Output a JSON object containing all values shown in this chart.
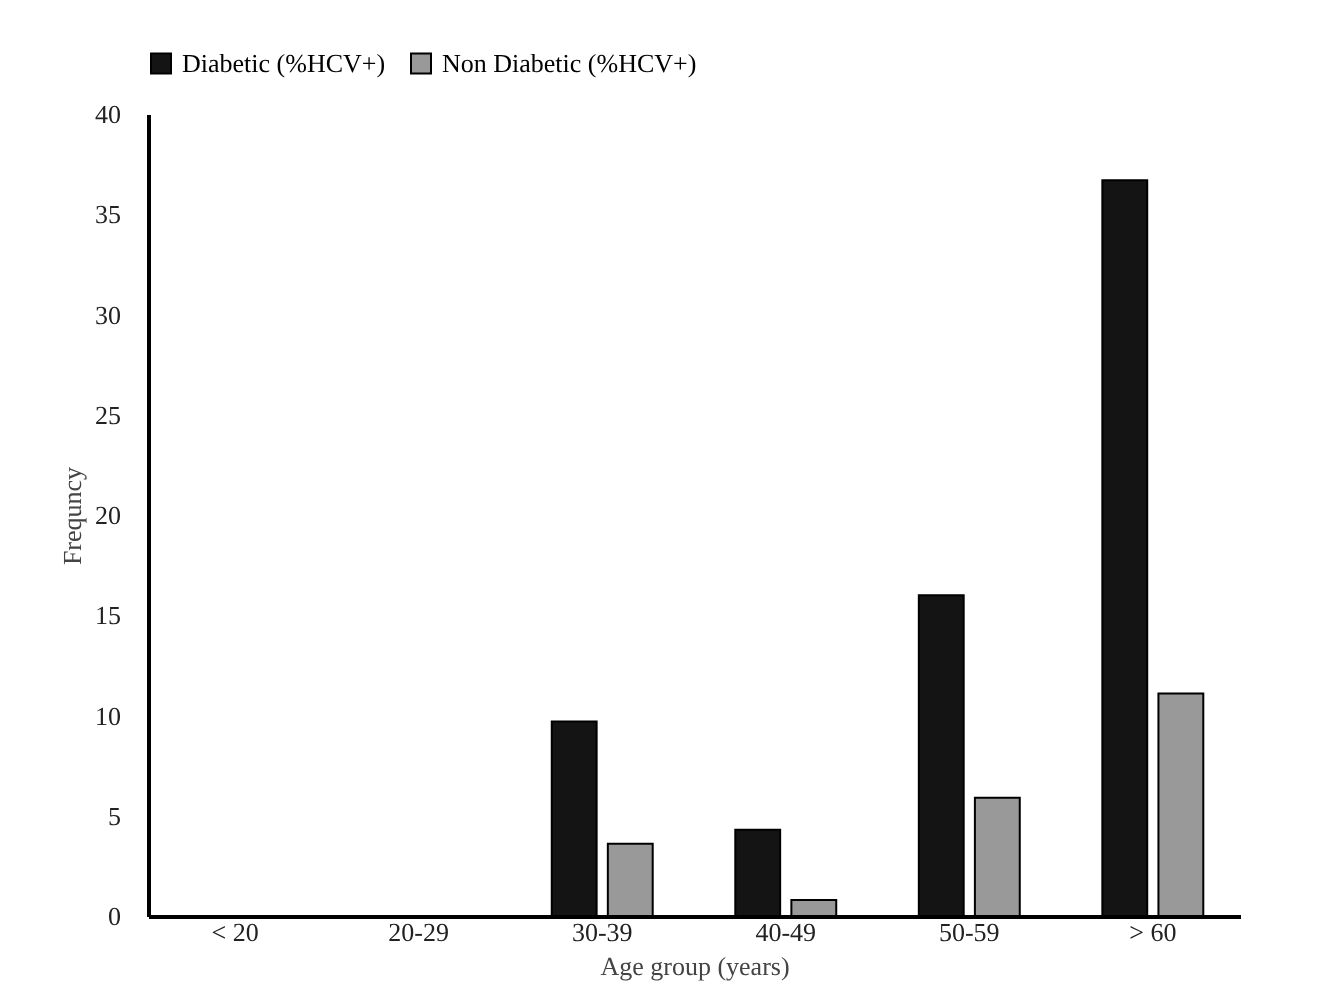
{
  "chart_data": {
    "type": "bar",
    "categories": [
      "< 20",
      "20-29",
      "30-39",
      "40-49",
      "50-59",
      "> 60"
    ],
    "series": [
      {
        "name": "Diabetic (%HCV+)",
        "color": "#141414",
        "values": [
          0,
          0,
          9.7,
          4.3,
          16,
          36.7
        ]
      },
      {
        "name": "Non Diabetic (%HCV+)",
        "color": "#999999",
        "values": [
          0,
          0,
          3.6,
          0.8,
          5.9,
          11.1
        ]
      }
    ],
    "xlabel": "Age group (years)",
    "ylabel": "Frequncy",
    "ylim": [
      0,
      40
    ],
    "yticks": [
      0,
      5,
      10,
      15,
      20,
      25,
      30,
      35,
      40
    ],
    "grid": false,
    "legend": "top"
  }
}
